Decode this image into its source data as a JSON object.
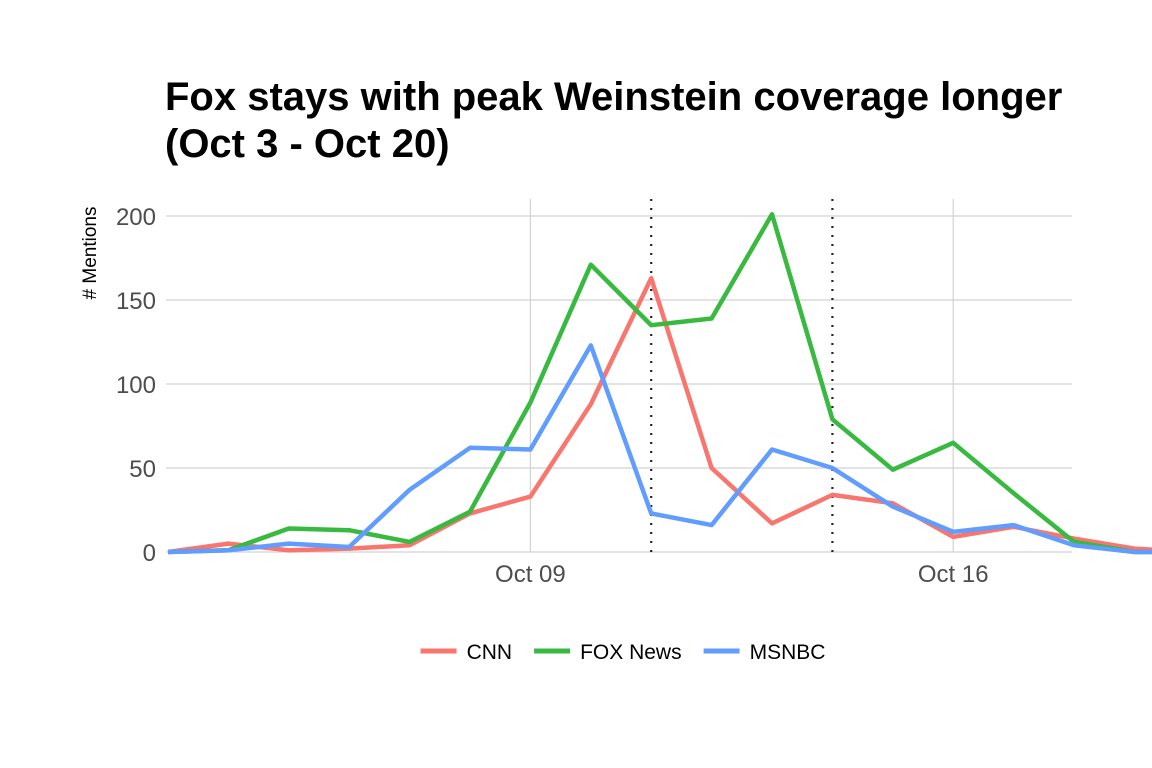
{
  "chart_data": {
    "type": "line",
    "title": "Fox stays with peak Weinstein coverage longer (Oct 3 - Oct 20)",
    "xlabel": "",
    "ylabel": "# Mentions",
    "x_dates": [
      "Oct 03",
      "Oct 04",
      "Oct 05",
      "Oct 06",
      "Oct 07",
      "Oct 08",
      "Oct 09",
      "Oct 10",
      "Oct 11",
      "Oct 12",
      "Oct 13",
      "Oct 14",
      "Oct 15",
      "Oct 16",
      "Oct 17",
      "Oct 18",
      "Oct 19",
      "Oct 20"
    ],
    "x_index": [
      0,
      1,
      2,
      3,
      4,
      5,
      6,
      7,
      8,
      9,
      10,
      11,
      12,
      13,
      14,
      15,
      16,
      17
    ],
    "x_ticks": [
      {
        "index": 6,
        "label": "Oct 09"
      },
      {
        "index": 13,
        "label": "Oct 16"
      }
    ],
    "xlim": [
      0,
      17
    ],
    "ylim": [
      0,
      210
    ],
    "y_ticks": [
      0,
      50,
      100,
      150,
      200
    ],
    "vlines": [
      8,
      11
    ],
    "grid": true,
    "legend_position": "bottom",
    "series": [
      {
        "name": "CNN",
        "color": "#f8766d",
        "values": [
          0,
          5,
          1,
          2,
          4,
          23,
          33,
          88,
          163,
          50,
          17,
          34,
          29,
          9,
          15,
          8,
          2,
          0
        ]
      },
      {
        "name": "FOX News",
        "color": "#38b940",
        "values": [
          0,
          1,
          14,
          13,
          6,
          24,
          89,
          171,
          135,
          139,
          201,
          79,
          49,
          65,
          35,
          6,
          0,
          0
        ]
      },
      {
        "name": "MSNBC",
        "color": "#619cff",
        "values": [
          0,
          1,
          5,
          3,
          37,
          62,
          61,
          123,
          23,
          16,
          61,
          50,
          27,
          12,
          16,
          4,
          0,
          0
        ]
      }
    ]
  }
}
